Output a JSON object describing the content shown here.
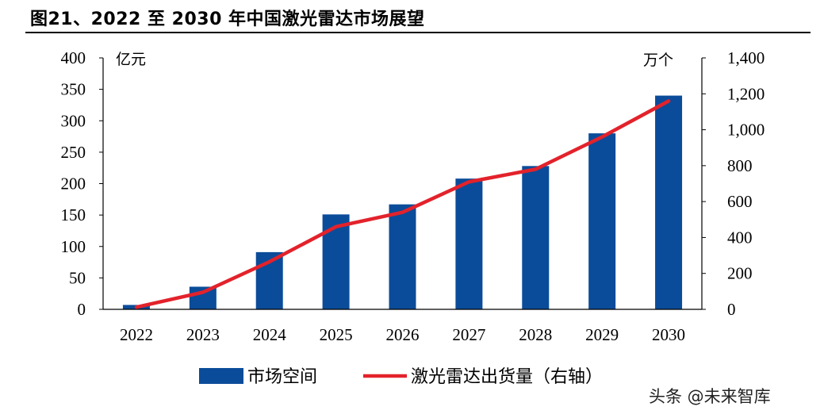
{
  "figure": {
    "title": "图21、2022 至 2030 年中国激光雷达市场展望",
    "watermark": "头条 @未来智库"
  },
  "colors": {
    "bar": "#0B4C9A",
    "line": "#E3222B"
  },
  "chart_data": {
    "type": "bar+line",
    "categories": [
      "2022",
      "2023",
      "2024",
      "2025",
      "2026",
      "2027",
      "2028",
      "2029",
      "2030"
    ],
    "series": [
      {
        "name": "市场空间",
        "type": "bar",
        "axis": "left",
        "values": [
          7,
          36,
          91,
          151,
          167,
          208,
          228,
          280,
          340
        ]
      },
      {
        "name": "激光雷达出货量（右轴）",
        "type": "line",
        "axis": "right",
        "values": [
          12,
          95,
          265,
          460,
          540,
          710,
          780,
          960,
          1160
        ]
      }
    ],
    "y_left": {
      "unit": "亿元",
      "range": [
        0,
        400
      ],
      "ticks": [
        0,
        50,
        100,
        150,
        200,
        250,
        300,
        350,
        400
      ],
      "tick_labels": [
        "0",
        "50",
        "100",
        "150",
        "200",
        "250",
        "300",
        "350",
        "400"
      ]
    },
    "y_right": {
      "unit": "万个",
      "range": [
        0,
        1400
      ],
      "ticks": [
        0,
        200,
        400,
        600,
        800,
        1000,
        1200,
        1400
      ],
      "tick_labels": [
        "0",
        "200",
        "400",
        "600",
        "800",
        "1,000",
        "1,200",
        "1,400"
      ]
    },
    "legend_position": "bottom",
    "grid": false
  }
}
